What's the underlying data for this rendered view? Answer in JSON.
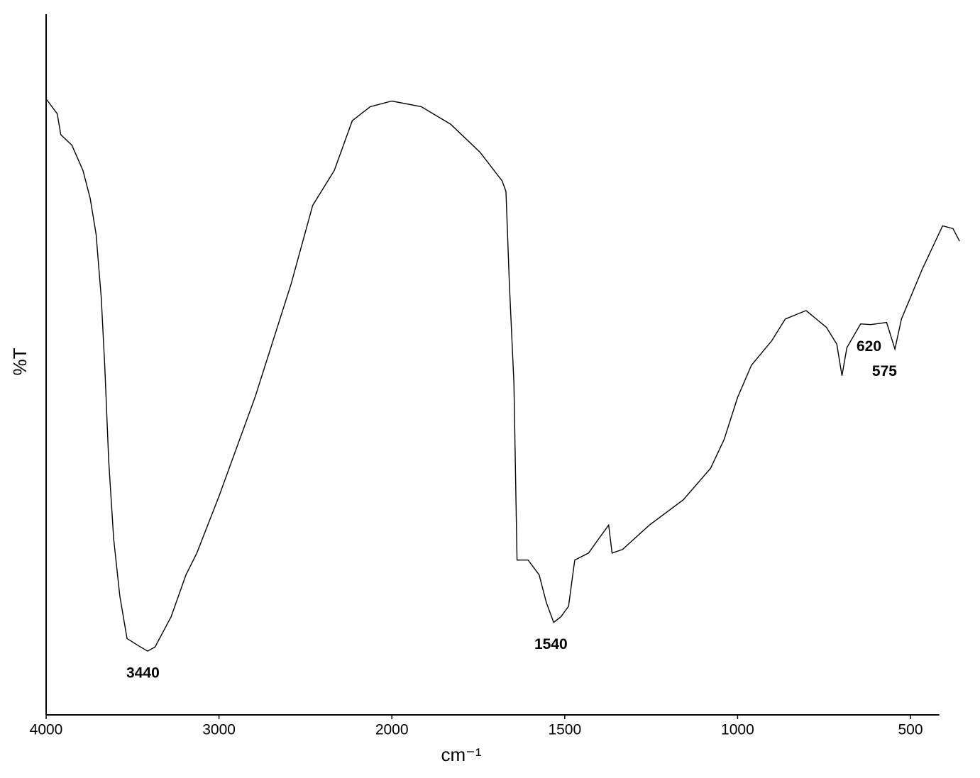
{
  "chart_data": {
    "type": "line",
    "xlabel": "cm⁻¹",
    "ylabel": "%T",
    "xlim": [
      4000,
      355
    ],
    "ylim": [
      0,
      100
    ],
    "xticks": [
      4000,
      3000,
      2000,
      1500,
      1000,
      500
    ],
    "color": "#000000",
    "x": [
      4000,
      3936,
      3915,
      3851,
      3787,
      3745,
      3711,
      3681,
      3660,
      3638,
      3609,
      3574,
      3532,
      3468,
      3413,
      3370,
      3277,
      3191,
      3128,
      3000,
      2792,
      2583,
      2458,
      2333,
      2229,
      2125,
      2000,
      1915,
      1830,
      1745,
      1681,
      1670,
      1660,
      1647,
      1638,
      1606,
      1574,
      1553,
      1532,
      1511,
      1489,
      1471,
      1431,
      1402,
      1373,
      1363,
      1333,
      1255,
      1157,
      1078,
      1039,
      1000,
      960,
      901,
      862,
      802,
      743,
      713,
      698,
      684,
      644,
      615,
      569,
      545,
      526,
      466,
      407,
      377,
      358
    ],
    "values": [
      87.9,
      85.8,
      82.8,
      81.3,
      77.7,
      73.7,
      68.6,
      59.5,
      49.4,
      36.2,
      25.1,
      17.0,
      10.9,
      9.9,
      9.1,
      9.7,
      14.0,
      20.0,
      23.1,
      31.2,
      45.3,
      61.5,
      72.7,
      77.7,
      84.8,
      86.8,
      87.6,
      86.8,
      84.3,
      80.3,
      76.2,
      74.7,
      61.5,
      47.4,
      22.1,
      22.1,
      20.0,
      16.0,
      13.2,
      14.0,
      15.5,
      22.1,
      23.1,
      25.1,
      27.1,
      23.1,
      23.6,
      27.1,
      30.7,
      35.2,
      39.3,
      45.3,
      49.9,
      53.4,
      56.5,
      57.7,
      55.3,
      52.9,
      48.4,
      52.4,
      55.8,
      55.7,
      56.0,
      52.2,
      56.5,
      63.6,
      69.8,
      69.4,
      67.6
    ],
    "annotations": [
      {
        "text": "3440",
        "x": 3440
      },
      {
        "text": "1540",
        "x": 1540
      },
      {
        "text": "620",
        "x": 620
      },
      {
        "text": "575",
        "x": 575
      }
    ]
  }
}
